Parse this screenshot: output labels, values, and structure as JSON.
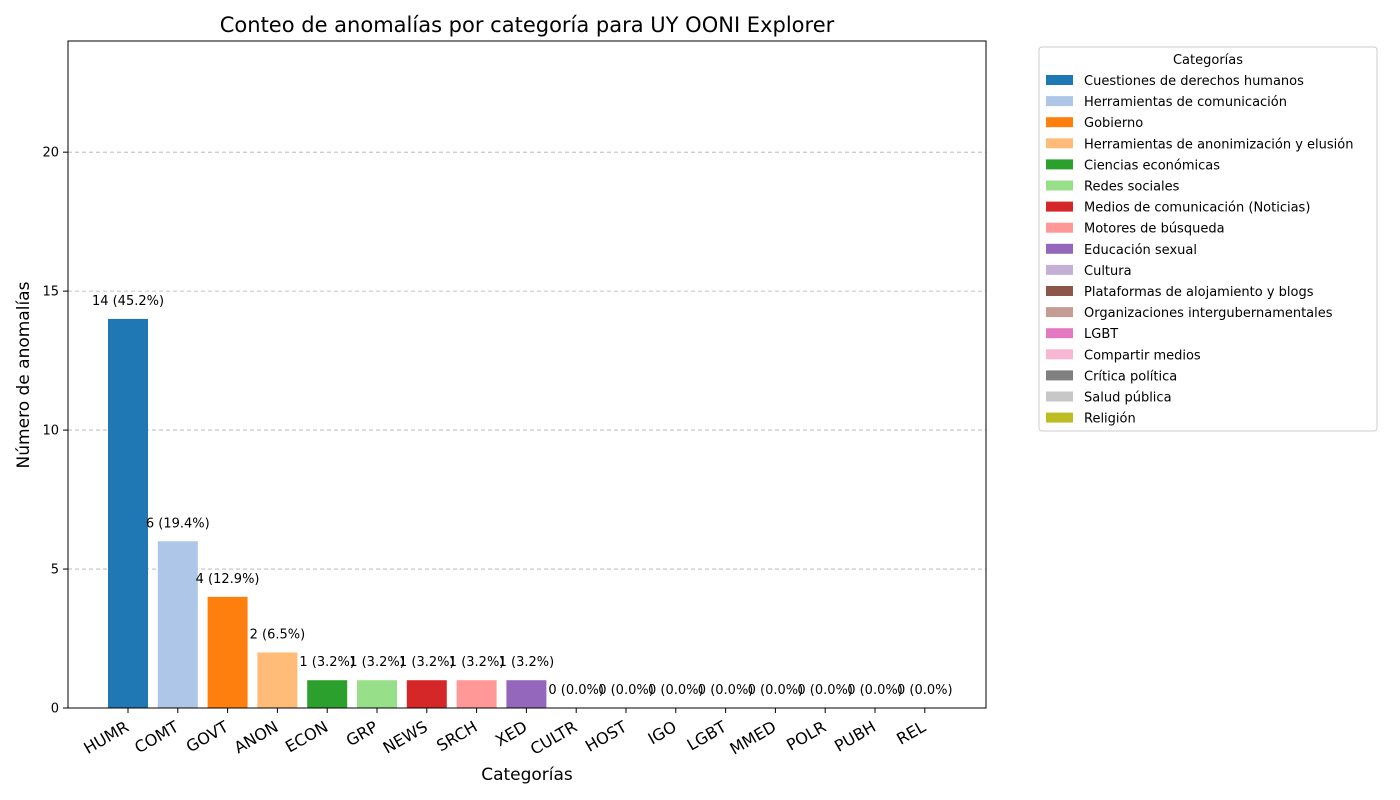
{
  "chart_data": {
    "type": "bar",
    "title": "Conteo de anomalías por categoría para UY OONI Explorer",
    "xlabel": "Categorías",
    "ylabel": "Número de anomalías",
    "ylim": [
      0,
      24
    ],
    "yticks": [
      0,
      5,
      10,
      15,
      20
    ],
    "grid": "y",
    "categories": [
      "HUMR",
      "COMT",
      "GOVT",
      "ANON",
      "ECON",
      "GRP",
      "NEWS",
      "SRCH",
      "XED",
      "CULTR",
      "HOST",
      "IGO",
      "LGBT",
      "MMED",
      "POLR",
      "PUBH",
      "REL"
    ],
    "values": [
      14,
      6,
      4,
      2,
      1,
      1,
      1,
      1,
      1,
      0,
      0,
      0,
      0,
      0,
      0,
      0,
      0
    ],
    "bar_labels": [
      "14 (45.2%)",
      "6 (19.4%)",
      "4 (12.9%)",
      "2 (6.5%)",
      "1 (3.2%)",
      "1 (3.2%)",
      "1 (3.2%)",
      "1 (3.2%)",
      "1 (3.2%)",
      "0 (0.0%)",
      "0 (0.0%)",
      "0 (0.0%)",
      "0 (0.0%)",
      "0 (0.0%)",
      "0 (0.0%)",
      "0 (0.0%)",
      "0 (0.0%)"
    ],
    "colors": [
      "#1f77b4",
      "#aec7e8",
      "#ff7f0e",
      "#ffbb78",
      "#2ca02c",
      "#98df8a",
      "#d62728",
      "#ff9896",
      "#9467bd",
      "#c5b0d5",
      "#8c564b",
      "#c49c94",
      "#e377c2",
      "#f7b6d2",
      "#7f7f7f",
      "#c7c7c7",
      "#bcbd22"
    ],
    "legend": {
      "title": "Categorías",
      "position": "outside-right-top",
      "entries": [
        "Cuestiones de derechos humanos",
        "Herramientas de comunicación",
        "Gobierno",
        "Herramientas de anonimización y elusión",
        "Ciencias económicas",
        "Redes sociales",
        "Medios de comunicación (Noticias)",
        "Motores de búsqueda",
        "Educación sexual",
        "Cultura",
        "Plataformas de alojamiento y blogs",
        "Organizaciones intergubernamentales",
        "LGBT",
        "Compartir medios",
        "Crítica política",
        "Salud pública",
        "Religión"
      ]
    }
  }
}
